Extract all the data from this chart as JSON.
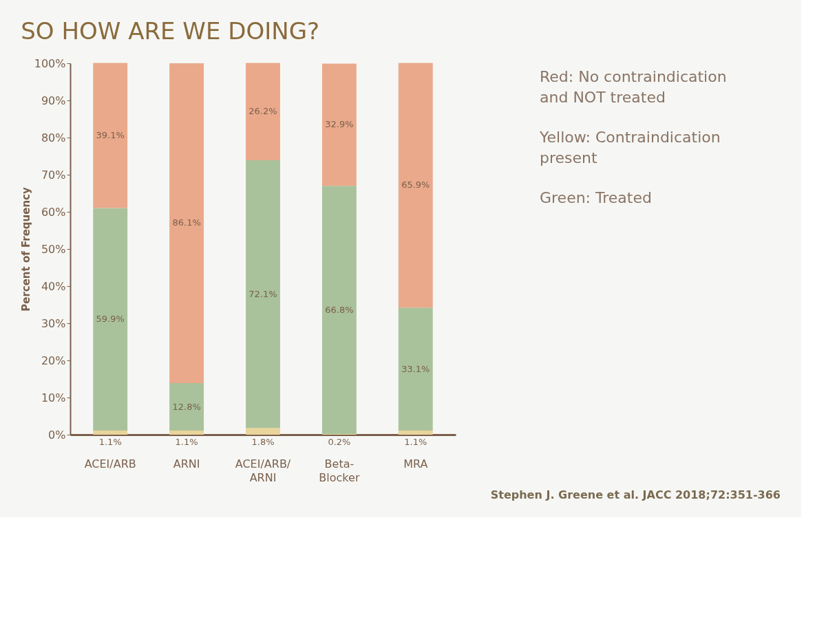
{
  "chart_data": {
    "type": "bar",
    "title": "SO HOW ARE WE DOING?",
    "ylabel": "Percent of Frequency",
    "categories": [
      "ACEI/ARB",
      "ARNI",
      "ACEI/ARB/ARNI",
      "Beta-Blocker",
      "MRA"
    ],
    "stacked": true,
    "series": [
      {
        "color": "#e9d49b",
        "values": [
          1.1,
          1.1,
          1.8,
          0.2,
          1.1
        ],
        "value_labels": [
          "1.1%",
          "1.1%",
          "1.8%",
          "0.2%",
          "1.1%"
        ]
      },
      {
        "color": "#a9c29b",
        "values": [
          59.9,
          12.8,
          72.1,
          66.8,
          33.1
        ],
        "value_labels": [
          "59.9%",
          "12.8%",
          "72.1%",
          "66.8%",
          "33.1%"
        ]
      },
      {
        "color": "#eaa98b",
        "values": [
          39.1,
          86.1,
          26.2,
          32.9,
          65.9
        ],
        "value_labels": [
          "39.1%",
          "86.1%",
          "26.2%",
          "32.9%",
          "65.9%"
        ]
      }
    ],
    "ylim": [
      0,
      100
    ],
    "yticks": [
      {
        "value": 0,
        "label": "0%"
      },
      {
        "value": 10,
        "label": "10%"
      },
      {
        "value": 20,
        "label": "20%"
      },
      {
        "value": 30,
        "label": "30%"
      },
      {
        "value": 40,
        "label": "40%"
      },
      {
        "value": 50,
        "label": "50%"
      },
      {
        "value": 60,
        "label": "60%"
      },
      {
        "value": 70,
        "label": "70%"
      },
      {
        "value": 80,
        "label": "80%"
      },
      {
        "value": 90,
        "label": "90%"
      },
      {
        "value": 100,
        "label": "100%"
      }
    ],
    "grid": false,
    "legend": false,
    "annotations": [
      "Red: No contraindication and NOT treated",
      "Yellow: Contraindication present",
      "Green: Treated",
      "Stephen J. Greene et al. JACC 2018;72:351-366"
    ]
  }
}
